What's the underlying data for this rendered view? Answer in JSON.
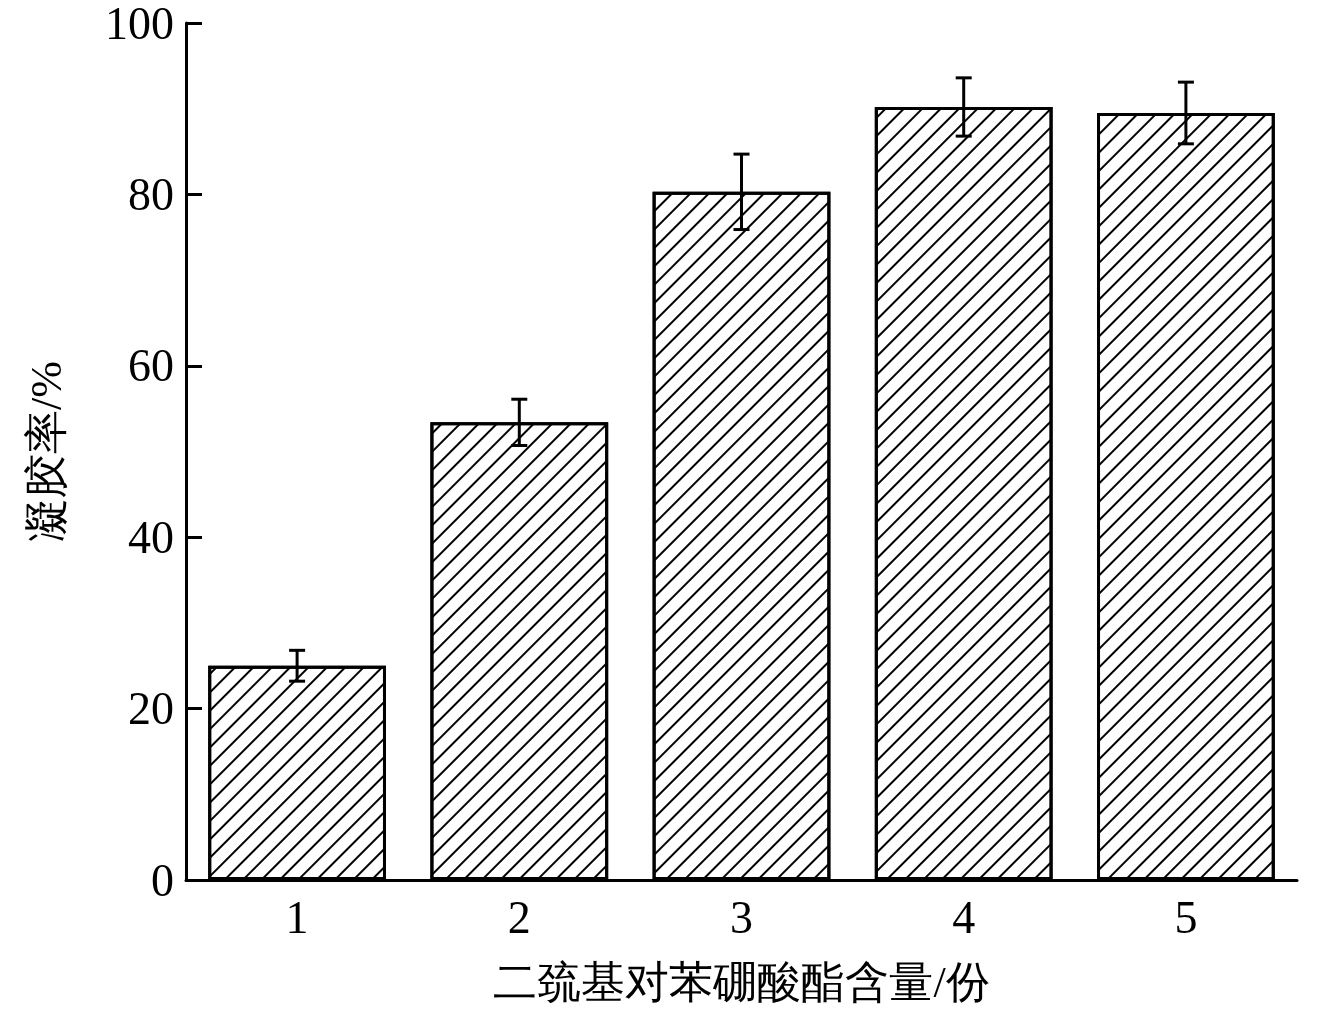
{
  "chart_data": {
    "type": "bar",
    "xlabel": "二巯基对苯硼酸酯含量/份",
    "ylabel": "凝胶率/%",
    "categories": [
      "1",
      "2",
      "3",
      "4",
      "5"
    ],
    "values": [
      25,
      53.4,
      80.3,
      90.2,
      89.5
    ],
    "errors": [
      1.8,
      2.7,
      4.4,
      3.4,
      3.6
    ],
    "color": "#000000",
    "ylim": [
      0,
      100
    ],
    "yticks": [
      0,
      20,
      40,
      60,
      80,
      100
    ],
    "grid": false
  }
}
